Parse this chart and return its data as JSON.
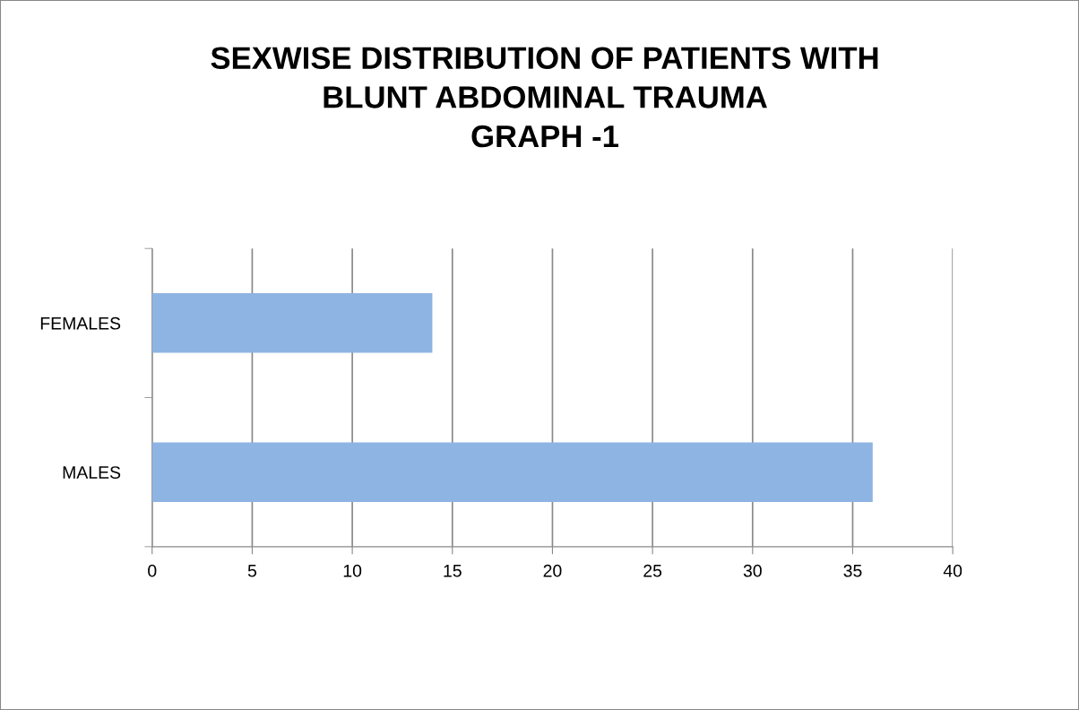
{
  "chart_data": {
    "type": "bar",
    "orientation": "horizontal",
    "title": "SEXWISE DISTRIBUTION OF PATIENTS WITH\nBLUNT ABDOMINAL TRAUMA\nGRAPH -1",
    "categories": [
      "FEMALES",
      "MALES"
    ],
    "values": [
      14,
      36
    ],
    "color": "#8eb4e3",
    "xlim": [
      0,
      40
    ],
    "xticks": [
      0,
      5,
      10,
      15,
      20,
      25,
      30,
      35,
      40
    ],
    "grid": "x",
    "legend": false
  }
}
